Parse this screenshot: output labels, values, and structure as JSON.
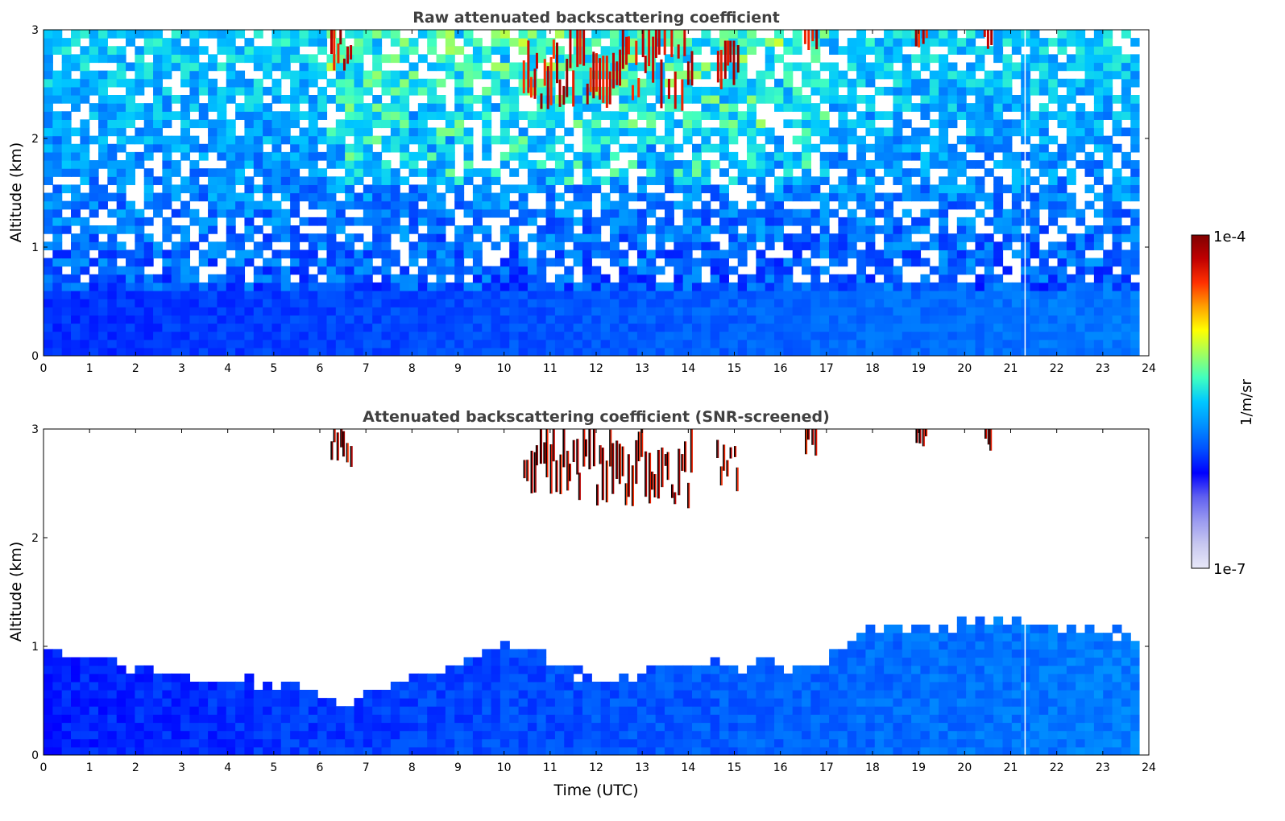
{
  "chart_data": [
    {
      "type": "heatmap",
      "title": "Raw attenuated backscattering coefficient",
      "xlabel": "",
      "ylabel": "Altitude (km)",
      "x_ticks": [
        "0",
        "1",
        "2",
        "3",
        "4",
        "5",
        "6",
        "7",
        "8",
        "9",
        "10",
        "11",
        "12",
        "13",
        "14",
        "15",
        "16",
        "17",
        "18",
        "19",
        "20",
        "21",
        "22",
        "23",
        "24"
      ],
      "y_ticks": [
        "0",
        "1",
        "2",
        "3"
      ],
      "xlim": [
        0,
        24
      ],
      "ylim": [
        0,
        3
      ],
      "x_unit": "hours UTC",
      "y_unit": "km",
      "features": {
        "boundary_layer_top_km": 0.6,
        "noisy_upper_background": true,
        "high_backscatter_clusters": [
          {
            "t_start": 6.2,
            "t_end": 6.7,
            "z_bottom": 2.6,
            "z_top": 3.0
          },
          {
            "t_start": 10.4,
            "t_end": 14.1,
            "z_bottom": 2.25,
            "z_top": 3.0
          },
          {
            "t_start": 14.6,
            "t_end": 15.1,
            "z_bottom": 2.4,
            "z_top": 2.9
          },
          {
            "t_start": 16.5,
            "t_end": 16.8,
            "z_bottom": 2.75,
            "z_top": 3.0
          },
          {
            "t_start": 18.9,
            "t_end": 19.2,
            "z_bottom": 2.8,
            "z_top": 3.0
          },
          {
            "t_start": 20.4,
            "t_end": 20.6,
            "z_bottom": 2.8,
            "z_top": 3.0
          }
        ],
        "missing_profile_time": 21.3
      }
    },
    {
      "type": "heatmap",
      "title": "Attenuated backscattering coefficient (SNR-screened)",
      "xlabel": "Time (UTC)",
      "ylabel": "Altitude (km)",
      "x_ticks": [
        "0",
        "1",
        "2",
        "3",
        "4",
        "5",
        "6",
        "7",
        "8",
        "9",
        "10",
        "11",
        "12",
        "13",
        "14",
        "15",
        "16",
        "17",
        "18",
        "19",
        "20",
        "21",
        "22",
        "23",
        "24"
      ],
      "y_ticks": [
        "0",
        "1",
        "2",
        "3"
      ],
      "xlim": [
        0,
        24
      ],
      "ylim": [
        0,
        3
      ],
      "x_unit": "hours UTC",
      "y_unit": "km",
      "features": {
        "screened_signal_top_km": [
          [
            0,
            0.95
          ],
          [
            1,
            0.85
          ],
          [
            2,
            0.75
          ],
          [
            3,
            0.7
          ],
          [
            4,
            0.65
          ],
          [
            5,
            0.6
          ],
          [
            6,
            0.5
          ],
          [
            6.5,
            0.42
          ],
          [
            7,
            0.6
          ],
          [
            8,
            0.7
          ],
          [
            9,
            0.8
          ],
          [
            10,
            1.0
          ],
          [
            11,
            0.8
          ],
          [
            12,
            0.65
          ],
          [
            13,
            0.75
          ],
          [
            14,
            0.85
          ],
          [
            15,
            0.8
          ],
          [
            16,
            0.8
          ],
          [
            16.8,
            0.8
          ],
          [
            17.5,
            1.05
          ],
          [
            18,
            1.15
          ],
          [
            19,
            1.1
          ],
          [
            20,
            1.2
          ],
          [
            21,
            1.2
          ],
          [
            22,
            1.15
          ],
          [
            23,
            1.1
          ],
          [
            23.8,
            1.05
          ]
        ],
        "high_backscatter_clusters": [
          {
            "t_start": 6.2,
            "t_end": 6.7,
            "z_bottom": 2.6,
            "z_top": 3.0
          },
          {
            "t_start": 10.4,
            "t_end": 14.1,
            "z_bottom": 2.25,
            "z_top": 3.0
          },
          {
            "t_start": 14.6,
            "t_end": 15.1,
            "z_bottom": 2.4,
            "z_top": 2.9
          },
          {
            "t_start": 16.5,
            "t_end": 16.8,
            "z_bottom": 2.75,
            "z_top": 3.0
          },
          {
            "t_start": 18.9,
            "t_end": 19.2,
            "z_bottom": 2.8,
            "z_top": 3.0
          },
          {
            "t_start": 20.4,
            "t_end": 20.6,
            "z_bottom": 2.8,
            "z_top": 3.0
          }
        ],
        "missing_profile_time": 21.3
      }
    }
  ],
  "colorbar": {
    "max_label": "1e-4",
    "min_label": "1e-7",
    "unit_label": "1/m/sr",
    "scale": "log",
    "range": [
      1e-07,
      0.0001
    ],
    "colormap": [
      "#e8e8f8",
      "#c8c8f0",
      "#9a9af0",
      "#6060f0",
      "#0000ff",
      "#0050ff",
      "#0090ff",
      "#00c8ff",
      "#40ffc0",
      "#a0ff60",
      "#ffff00",
      "#ffa000",
      "#ff3000",
      "#c00000",
      "#800000"
    ]
  }
}
